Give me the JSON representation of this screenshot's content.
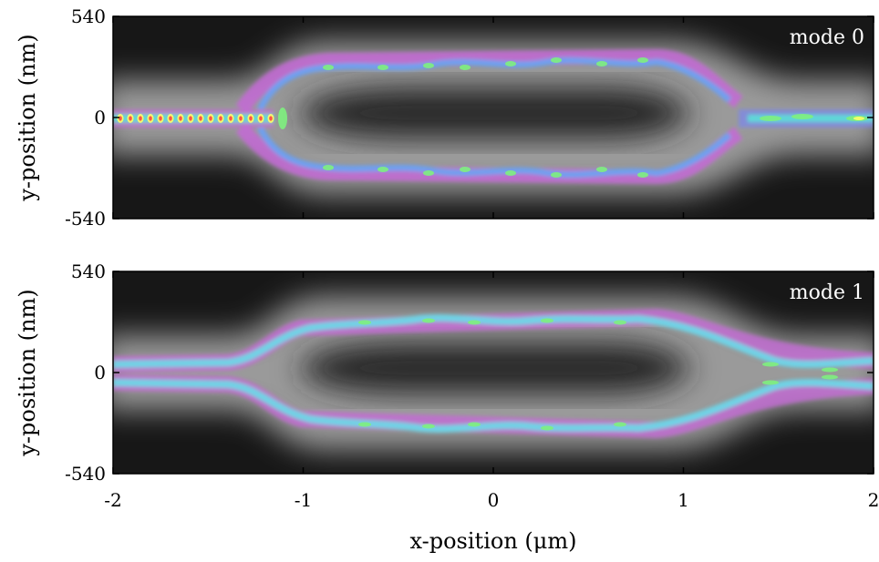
{
  "figure": {
    "xlabel": "x-position (μm)",
    "ylabel": "y-position (nm)"
  },
  "chart_data": [
    {
      "type": "heatmap",
      "annotation": "mode 0",
      "xlim": [
        -2,
        2
      ],
      "ylim": [
        -540,
        540
      ],
      "x_ticks": [
        "-2",
        "-1",
        "0",
        "1",
        "2"
      ],
      "y_ticks": [
        "540",
        "0",
        "-540"
      ],
      "colormap": [
        "#1a1a1a",
        "#b0b0b0",
        "#c46ad6",
        "#7a86f0",
        "#5ed8d8",
        "#7ef07e",
        "#ffff66",
        "#ff4444"
      ]
    },
    {
      "type": "heatmap",
      "annotation": "mode 1",
      "xlim": [
        -2,
        2
      ],
      "ylim": [
        -540,
        540
      ],
      "x_ticks": [
        "-2",
        "-1",
        "0",
        "1",
        "2"
      ],
      "y_ticks": [
        "540",
        "0",
        "-540"
      ],
      "colormap": [
        "#1a1a1a",
        "#b0b0b0",
        "#c46ad6",
        "#7a86f0",
        "#5ed8d8",
        "#7ef07e",
        "#ffff66",
        "#ff4444"
      ]
    }
  ]
}
